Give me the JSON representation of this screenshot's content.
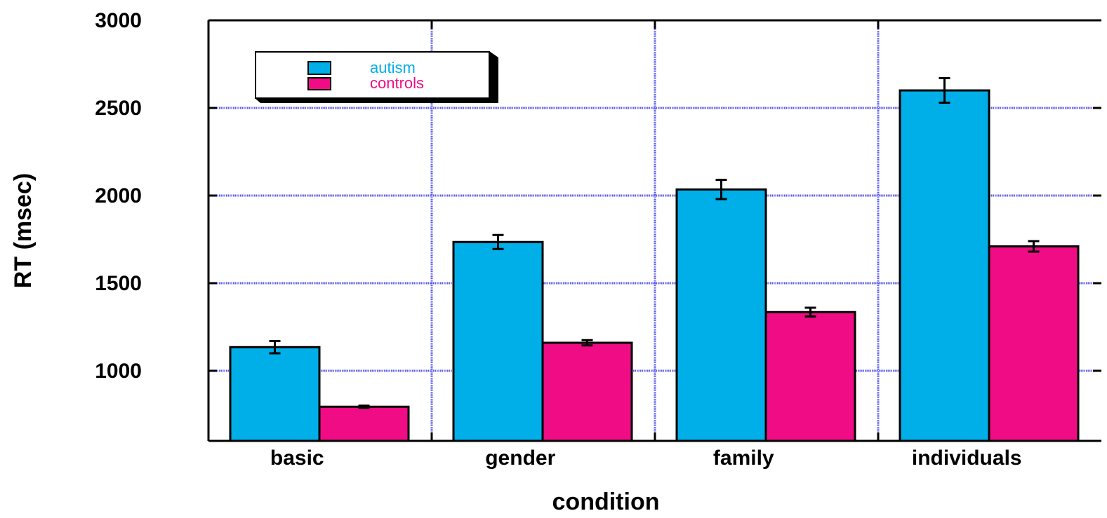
{
  "chart_data": {
    "type": "bar",
    "title": "",
    "xlabel": "condition",
    "ylabel": "RT (msec)",
    "categories": [
      "basic",
      "gender",
      "family",
      "individuals"
    ],
    "ylim": [
      600,
      3000
    ],
    "yticks": [
      1000,
      1500,
      2000,
      2500,
      3000
    ],
    "grid": true,
    "legend_position": "top-left",
    "series": [
      {
        "name": "autism",
        "color": "#00aee8",
        "values": [
          1135,
          1735,
          2035,
          2600
        ],
        "errors": [
          35,
          40,
          55,
          70
        ]
      },
      {
        "name": "controls",
        "color": "#f00c84",
        "values": [
          795,
          1160,
          1335,
          1710
        ],
        "errors": [
          6,
          15,
          25,
          30
        ]
      }
    ]
  }
}
